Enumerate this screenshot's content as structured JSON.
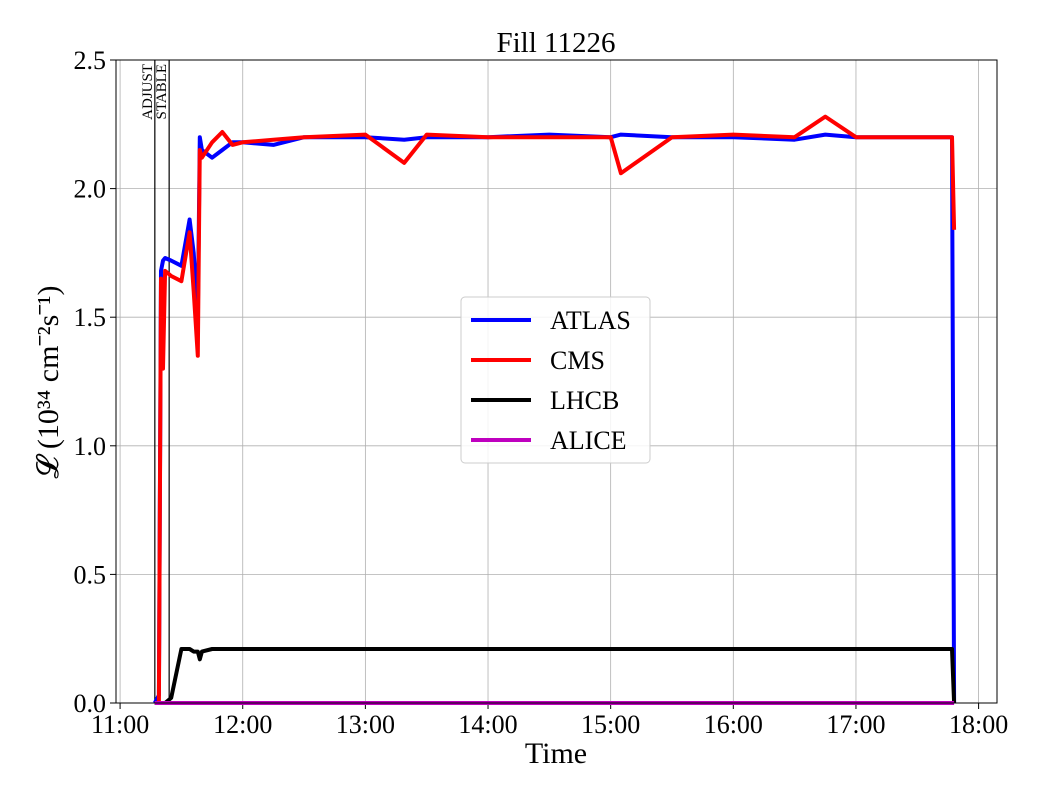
{
  "chart_data": {
    "type": "line",
    "title": "Fill 11226",
    "xlabel": "Time",
    "ylabel": "𝓛 (10³⁴ cm⁻²s⁻¹)",
    "x": [
      "11:17",
      "11:19",
      "11:20",
      "11:21",
      "11:22",
      "11:25",
      "11:30",
      "11:34",
      "11:36",
      "11:38",
      "11:39",
      "11:40",
      "11:45",
      "11:50",
      "11:55",
      "12:00",
      "12:15",
      "12:30",
      "13:00",
      "13:19",
      "13:30",
      "14:00",
      "14:30",
      "15:00",
      "15:05",
      "15:30",
      "16:00",
      "16:30",
      "16:45",
      "17:00",
      "17:30",
      "17:47",
      "17:48"
    ],
    "series": [
      {
        "name": "ATLAS",
        "color": "#0000ff",
        "values": [
          0,
          0.03,
          1.68,
          1.72,
          1.73,
          1.72,
          1.7,
          1.88,
          1.75,
          1.5,
          2.2,
          2.15,
          2.12,
          2.15,
          2.18,
          2.18,
          2.17,
          2.2,
          2.2,
          2.19,
          2.2,
          2.2,
          2.21,
          2.2,
          2.21,
          2.2,
          2.2,
          2.19,
          2.21,
          2.2,
          2.2,
          2.2,
          0
        ]
      },
      {
        "name": "CMS",
        "color": "#ff0000",
        "values": [
          0,
          0,
          1.65,
          1.3,
          1.68,
          1.66,
          1.64,
          1.83,
          1.6,
          1.35,
          2.15,
          2.12,
          2.18,
          2.22,
          2.17,
          2.18,
          2.19,
          2.2,
          2.21,
          2.1,
          2.21,
          2.2,
          2.2,
          2.2,
          2.06,
          2.2,
          2.21,
          2.2,
          2.28,
          2.2,
          2.2,
          2.2,
          1.84
        ]
      },
      {
        "name": "LHCB",
        "color": "#000000",
        "values": [
          0,
          0,
          0,
          0,
          0,
          0.02,
          0.21,
          0.21,
          0.2,
          0.2,
          0.17,
          0.2,
          0.21,
          0.21,
          0.21,
          0.21,
          0.21,
          0.21,
          0.21,
          0.21,
          0.21,
          0.21,
          0.21,
          0.21,
          0.21,
          0.21,
          0.21,
          0.21,
          0.21,
          0.21,
          0.21,
          0.21,
          0
        ]
      },
      {
        "name": "ALICE",
        "color": "#bf00bf",
        "values": [
          0,
          0,
          0,
          0,
          0,
          0,
          0,
          0,
          0,
          0,
          0,
          0,
          0,
          0,
          0,
          0,
          0,
          0,
          0,
          0,
          0,
          0,
          0,
          0,
          0,
          0,
          0,
          0,
          0,
          0,
          0,
          0,
          0
        ]
      }
    ],
    "xlim": [
      "10:58",
      "18:09"
    ],
    "xticks": [
      "11:00",
      "12:00",
      "13:00",
      "14:00",
      "15:00",
      "16:00",
      "17:00",
      "18:00"
    ],
    "ylim": [
      0,
      2.5
    ],
    "yticks": [
      {
        "value": 0,
        "label": "0.0"
      },
      0.5,
      {
        "value": 1,
        "label": "1.0"
      },
      1.5,
      {
        "value": 2,
        "label": "2.0"
      },
      2.5
    ],
    "annotations": [
      {
        "x": "11:17",
        "label": "ADJUST"
      },
      {
        "x": "11:24",
        "label": "STABLE"
      }
    ],
    "grid": true,
    "legend": "center"
  }
}
